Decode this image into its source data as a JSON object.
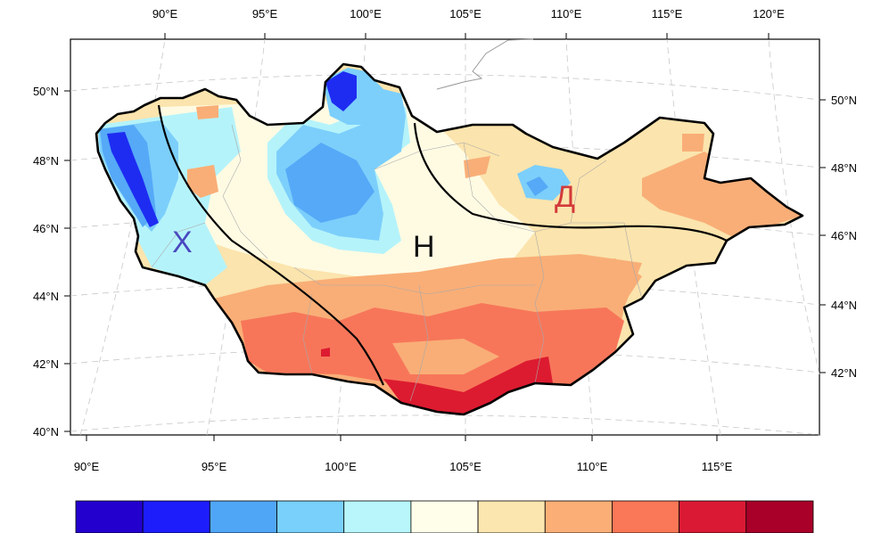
{
  "map": {
    "top_lon_labels": [
      "90°E",
      "95°E",
      "100°E",
      "105°E",
      "110°E",
      "115°E",
      "120°E"
    ],
    "bottom_lon_labels": [
      "90°E",
      "95°E",
      "100°E",
      "105°E",
      "110°E",
      "115°E"
    ],
    "left_lat_labels": [
      "50°N",
      "48°N",
      "46°N",
      "44°N",
      "42°N",
      "40°N"
    ],
    "right_lat_labels": [
      "50°N",
      "48°N",
      "46°N",
      "44°N",
      "42°N"
    ],
    "zone_labels": [
      {
        "text": "Х",
        "color": "#4a48c0"
      },
      {
        "text": "Н",
        "color": "#111111"
      },
      {
        "text": "Д",
        "color": "#d33a3a"
      }
    ],
    "colors": {
      "deep_blue": "#2800d2",
      "blue": "#1e2cf2",
      "mid_blue": "#55a9f7",
      "light_blue": "#7ccffb",
      "pale_cyan": "#b5f3fa",
      "cream": "#fffbe3",
      "light_orange": "#fbe4ad",
      "orange": "#f9ae77",
      "dark_orange": "#f7765a",
      "red": "#dc1b30",
      "dark_red": "#a7002a"
    }
  },
  "colorbar": {
    "colors": [
      "#2400cf",
      "#1d1dfc",
      "#50a6f6",
      "#78d0fb",
      "#b8f6fc",
      "#fffeeb",
      "#fce6b0",
      "#fbaf77",
      "#fa7757",
      "#da1a35",
      "#a80029"
    ]
  }
}
